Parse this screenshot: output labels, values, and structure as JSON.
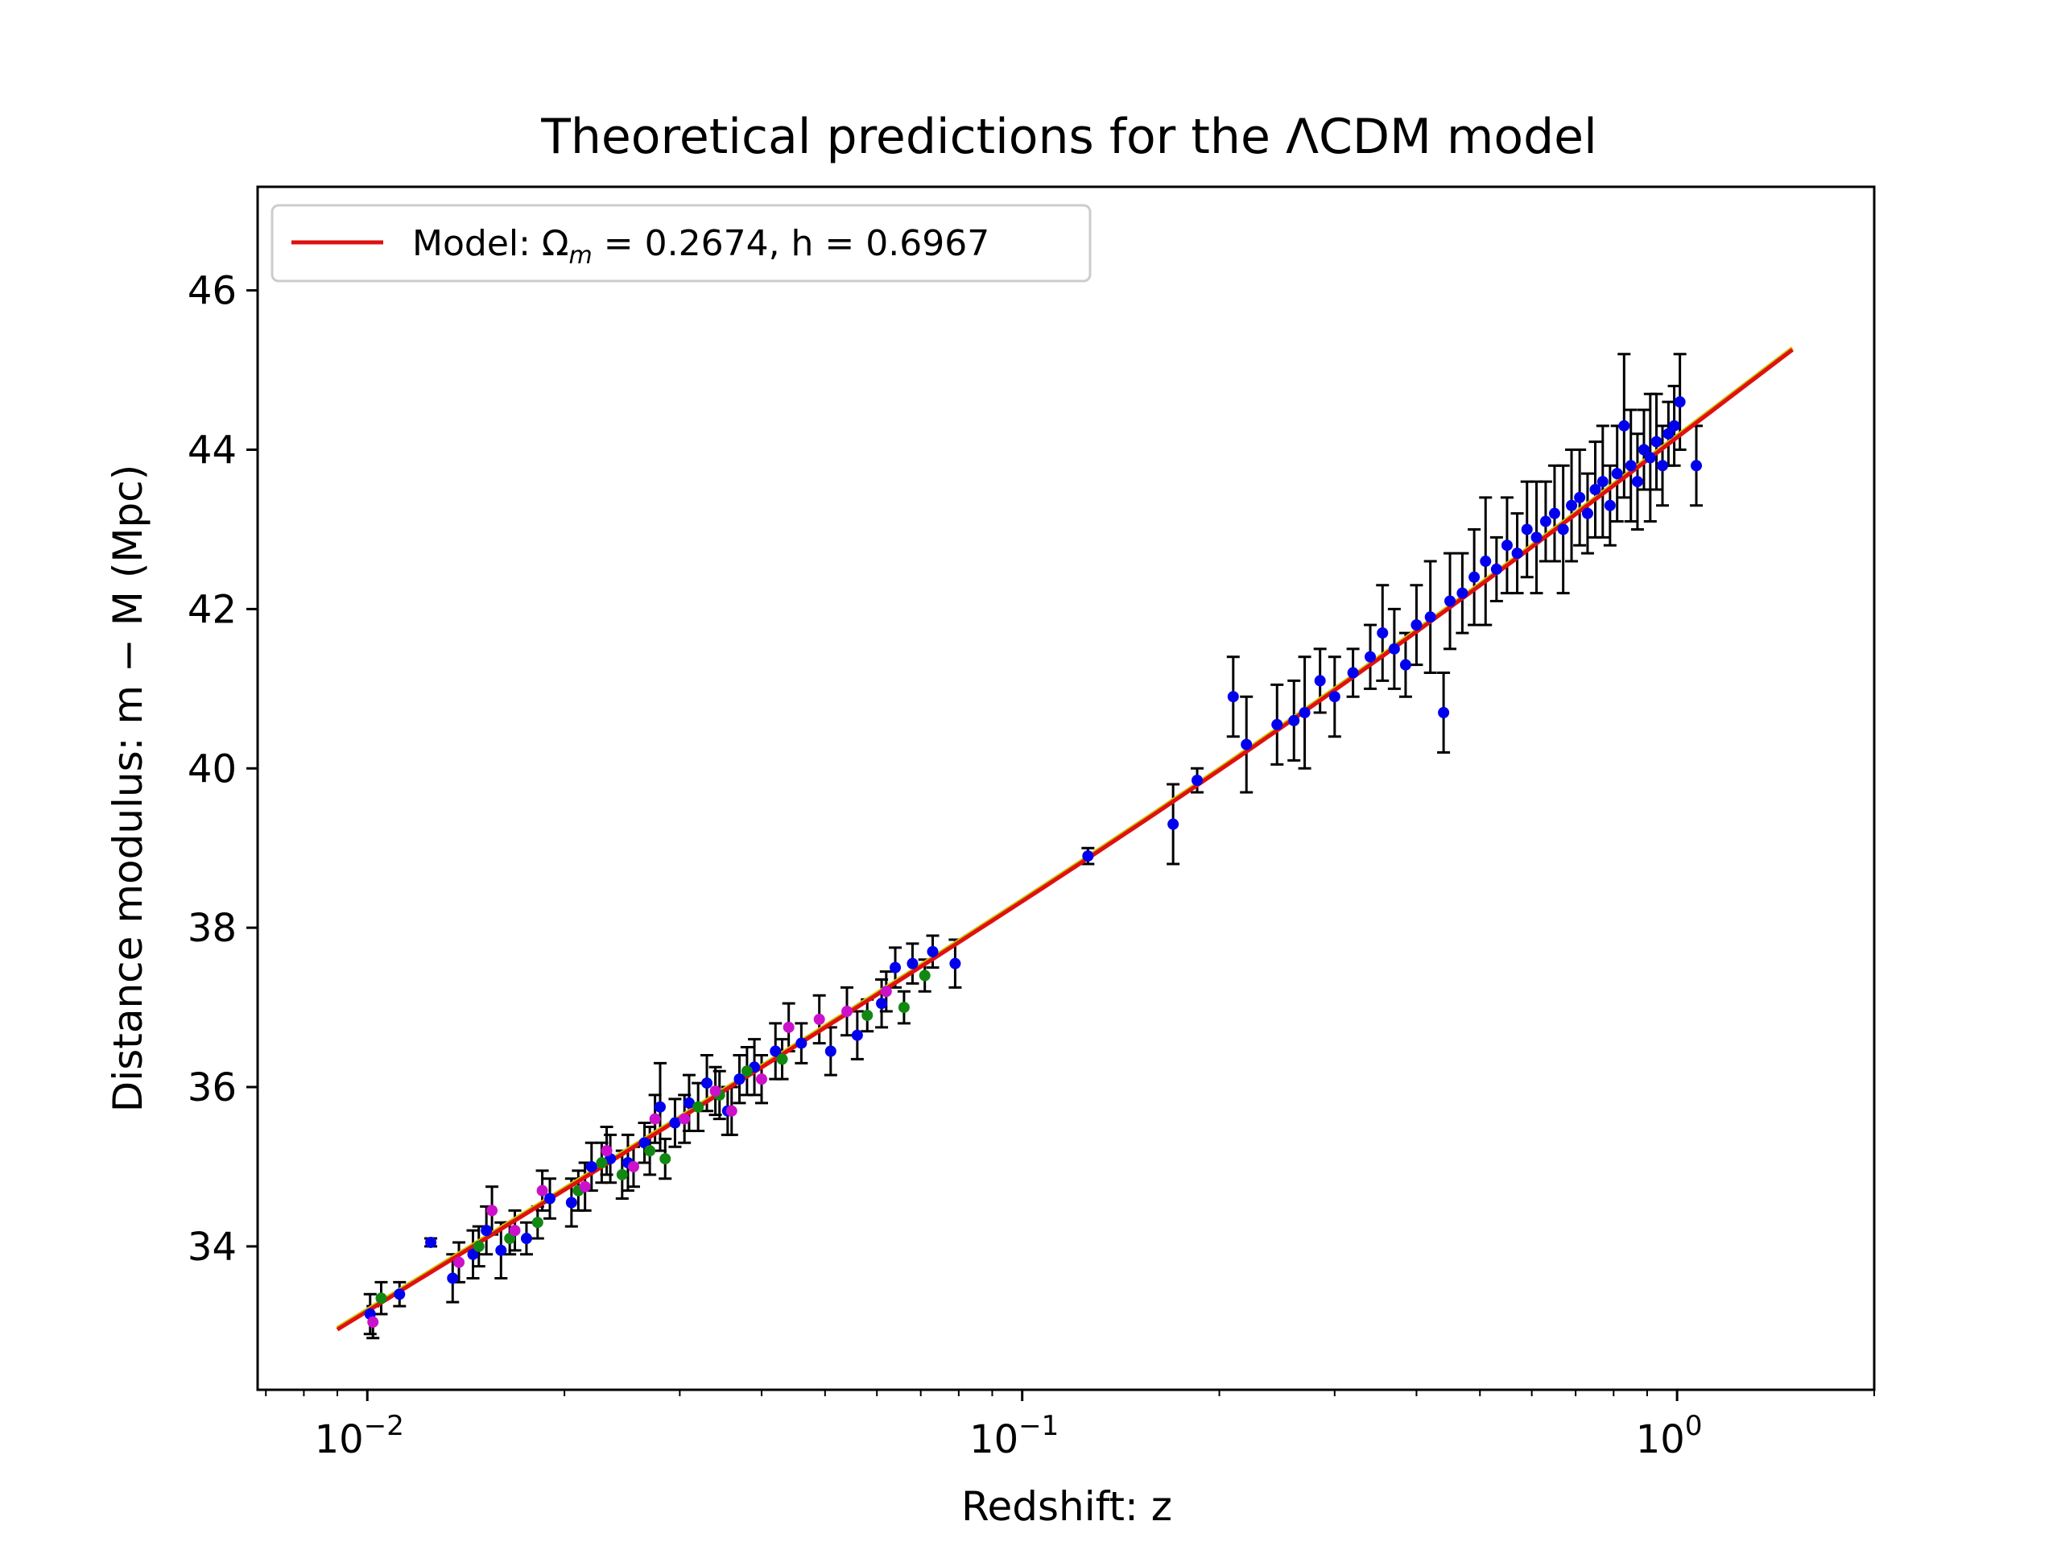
{
  "chart_data": {
    "type": "scatter",
    "title": "Theoretical predictions for the ΛCDM model",
    "xlabel": "Redshift: z",
    "ylabel": "Distance modulus: m − M (Mpc)",
    "xscale": "log",
    "xlim": [
      0.0068,
      2.0
    ],
    "ylim": [
      32.2,
      47.3
    ],
    "x_tick_labels": [
      {
        "x": 0.01,
        "label": "10",
        "exp": "−2"
      },
      {
        "x": 0.1,
        "label": "10",
        "exp": "−1"
      },
      {
        "x": 1.0,
        "label": "10",
        "exp": "0"
      }
    ],
    "y_ticks": [
      34,
      36,
      38,
      40,
      42,
      44,
      46
    ],
    "grid": false,
    "legend": {
      "position": "upper-left",
      "label": "Model: Ω",
      "sub": "m",
      "rest": " = 0.2674, h = 0.6967"
    },
    "colors": {
      "model": "#e01010",
      "model_alt": "#c8c800",
      "errorbar": "#000000",
      "series_blue": "#0000ee",
      "series_green": "#118811",
      "series_magenta": "#cc11cc"
    },
    "model": {
      "omega_m": 0.2674,
      "h": 0.6967,
      "z_range": [
        0.009,
        1.5
      ]
    },
    "series": [
      {
        "color_key": "series_blue",
        "points": [
          [
            0.0101,
            33.15,
            0.25
          ],
          [
            0.0112,
            33.4,
            0.15
          ],
          [
            0.0125,
            34.05,
            0.05
          ],
          [
            0.0135,
            33.6,
            0.3
          ],
          [
            0.0145,
            33.9,
            0.3
          ],
          [
            0.0152,
            34.2,
            0.3
          ],
          [
            0.016,
            33.95,
            0.35
          ],
          [
            0.0175,
            34.1,
            0.2
          ],
          [
            0.019,
            34.6,
            0.25
          ],
          [
            0.0205,
            34.55,
            0.3
          ],
          [
            0.022,
            35.0,
            0.3
          ],
          [
            0.0235,
            35.1,
            0.3
          ],
          [
            0.025,
            35.05,
            0.35
          ],
          [
            0.0265,
            35.3,
            0.25
          ],
          [
            0.028,
            35.75,
            0.55
          ],
          [
            0.0295,
            35.55,
            0.3
          ],
          [
            0.031,
            35.8,
            0.35
          ],
          [
            0.033,
            36.05,
            0.35
          ],
          [
            0.0355,
            35.7,
            0.3
          ],
          [
            0.037,
            36.1,
            0.3
          ],
          [
            0.039,
            36.25,
            0.35
          ],
          [
            0.042,
            36.45,
            0.35
          ],
          [
            0.046,
            36.55,
            0.25
          ],
          [
            0.051,
            36.45,
            0.3
          ],
          [
            0.056,
            36.65,
            0.3
          ],
          [
            0.061,
            37.05,
            0.3
          ],
          [
            0.064,
            37.5,
            0.25
          ],
          [
            0.068,
            37.55,
            0.25
          ],
          [
            0.073,
            37.7,
            0.2
          ],
          [
            0.079,
            37.55,
            0.3
          ],
          [
            0.126,
            38.9,
            0.1
          ],
          [
            0.17,
            39.3,
            0.5
          ],
          [
            0.185,
            39.85,
            0.15
          ],
          [
            0.21,
            40.9,
            0.5
          ],
          [
            0.22,
            40.3,
            0.6
          ],
          [
            0.245,
            40.55,
            0.5
          ],
          [
            0.26,
            40.6,
            0.5
          ],
          [
            0.27,
            40.7,
            0.7
          ],
          [
            0.285,
            41.1,
            0.4
          ],
          [
            0.3,
            40.9,
            0.5
          ],
          [
            0.32,
            41.2,
            0.3
          ],
          [
            0.34,
            41.4,
            0.4
          ],
          [
            0.355,
            41.7,
            0.6
          ],
          [
            0.37,
            41.5,
            0.5
          ],
          [
            0.385,
            41.3,
            0.4
          ],
          [
            0.4,
            41.8,
            0.5
          ],
          [
            0.42,
            41.9,
            0.7
          ],
          [
            0.44,
            40.7,
            0.5
          ],
          [
            0.45,
            42.1,
            0.6
          ],
          [
            0.47,
            42.2,
            0.5
          ],
          [
            0.49,
            42.4,
            0.6
          ],
          [
            0.51,
            42.6,
            0.8
          ],
          [
            0.53,
            42.5,
            0.4
          ],
          [
            0.55,
            42.8,
            0.6
          ],
          [
            0.57,
            42.7,
            0.5
          ],
          [
            0.59,
            43.0,
            0.6
          ],
          [
            0.61,
            42.9,
            0.7
          ],
          [
            0.63,
            43.1,
            0.5
          ],
          [
            0.65,
            43.2,
            0.6
          ],
          [
            0.67,
            43.0,
            0.8
          ],
          [
            0.69,
            43.3,
            0.7
          ],
          [
            0.71,
            43.4,
            0.6
          ],
          [
            0.73,
            43.2,
            0.5
          ],
          [
            0.75,
            43.5,
            0.6
          ],
          [
            0.77,
            43.6,
            0.7
          ],
          [
            0.79,
            43.3,
            0.5
          ],
          [
            0.81,
            43.7,
            0.6
          ],
          [
            0.83,
            44.3,
            0.9
          ],
          [
            0.85,
            43.8,
            0.7
          ],
          [
            0.87,
            43.6,
            0.6
          ],
          [
            0.89,
            44.0,
            0.5
          ],
          [
            0.91,
            43.9,
            0.8
          ],
          [
            0.93,
            44.1,
            0.6
          ],
          [
            0.95,
            43.8,
            0.5
          ],
          [
            0.97,
            44.2,
            0.4
          ],
          [
            0.99,
            44.3,
            0.5
          ],
          [
            1.01,
            44.6,
            0.6
          ],
          [
            1.07,
            43.8,
            0.5
          ]
        ]
      },
      {
        "color_key": "series_green",
        "points": [
          [
            0.0105,
            33.35,
            0.2
          ],
          [
            0.0148,
            34.0,
            0.25
          ],
          [
            0.0165,
            34.1,
            0.2
          ],
          [
            0.0182,
            34.3,
            0.2
          ],
          [
            0.021,
            34.7,
            0.25
          ],
          [
            0.0228,
            35.05,
            0.25
          ],
          [
            0.0245,
            34.9,
            0.3
          ],
          [
            0.027,
            35.2,
            0.3
          ],
          [
            0.0285,
            35.1,
            0.25
          ],
          [
            0.032,
            35.75,
            0.3
          ],
          [
            0.0345,
            35.9,
            0.3
          ],
          [
            0.038,
            36.2,
            0.3
          ],
          [
            0.043,
            36.35,
            0.25
          ],
          [
            0.058,
            36.9,
            0.2
          ],
          [
            0.066,
            37.0,
            0.2
          ],
          [
            0.071,
            37.4,
            0.2
          ]
        ]
      },
      {
        "color_key": "series_magenta",
        "points": [
          [
            0.0102,
            33.05,
            0.2
          ],
          [
            0.0138,
            33.8,
            0.25
          ],
          [
            0.0155,
            34.45,
            0.3
          ],
          [
            0.0168,
            34.2,
            0.25
          ],
          [
            0.0185,
            34.7,
            0.25
          ],
          [
            0.0215,
            34.75,
            0.3
          ],
          [
            0.0232,
            35.2,
            0.3
          ],
          [
            0.0255,
            35.0,
            0.25
          ],
          [
            0.0275,
            35.6,
            0.3
          ],
          [
            0.0305,
            35.6,
            0.3
          ],
          [
            0.034,
            35.95,
            0.3
          ],
          [
            0.036,
            35.7,
            0.3
          ],
          [
            0.04,
            36.1,
            0.3
          ],
          [
            0.044,
            36.75,
            0.3
          ],
          [
            0.049,
            36.85,
            0.3
          ],
          [
            0.054,
            36.95,
            0.3
          ],
          [
            0.062,
            37.2,
            0.25
          ]
        ]
      }
    ]
  }
}
